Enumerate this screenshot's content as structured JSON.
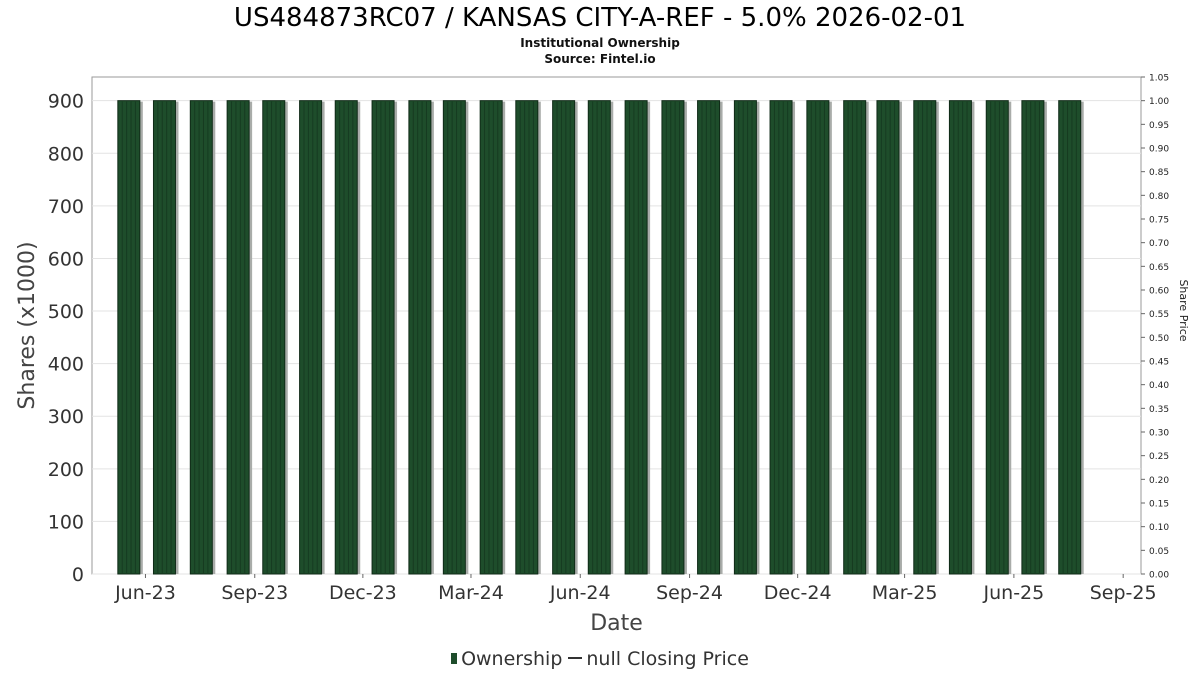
{
  "chart_data": {
    "type": "bar",
    "title": "US484873RC07 / KANSAS CITY-A-REF - 5.0% 2026-02-01",
    "subtitles": [
      "Institutional Ownership",
      "Source: Fintel.io"
    ],
    "xlabel": "Date",
    "ylabel": "Shares (x1000)",
    "y2label": "Share Price",
    "x_tick_labels": [
      "Jun-23",
      "Sep-23",
      "Dec-23",
      "Mar-24",
      "Jun-24",
      "Sep-24",
      "Dec-24",
      "Mar-25",
      "Jun-25",
      "Sep-25"
    ],
    "y_tick_labels": [
      "0",
      "100",
      "200",
      "300",
      "400",
      "500",
      "600",
      "700",
      "800",
      "900"
    ],
    "y2_tick_labels": [
      "0.00",
      "0.05",
      "0.10",
      "0.15",
      "0.20",
      "0.25",
      "0.30",
      "0.35",
      "0.40",
      "0.45",
      "0.50",
      "0.55",
      "0.60",
      "0.65",
      "0.70",
      "0.75",
      "0.80",
      "0.85",
      "0.90",
      "0.95",
      "1.00",
      "1.05"
    ],
    "ylim": [
      0,
      945
    ],
    "y2lim": [
      0,
      1.05
    ],
    "xlim": [
      "2023-05-01",
      "2025-09-30"
    ],
    "grid": true,
    "legend_position": "bottom",
    "series": [
      {
        "name": "Ownership",
        "color": "#1e4d2b",
        "x": [
          "2023-06-01",
          "2023-07-01",
          "2023-08-01",
          "2023-09-01",
          "2023-10-01",
          "2023-11-01",
          "2023-12-01",
          "2024-01-01",
          "2024-02-01",
          "2024-03-01",
          "2024-04-01",
          "2024-05-01",
          "2024-06-01",
          "2024-07-01",
          "2024-08-01",
          "2024-09-01",
          "2024-10-01",
          "2024-11-01",
          "2024-12-01",
          "2025-01-01",
          "2025-02-01",
          "2025-03-01",
          "2025-04-01",
          "2025-05-01",
          "2025-06-01",
          "2025-07-01",
          "2025-08-01"
        ],
        "values": [
          900,
          900,
          900,
          900,
          900,
          900,
          900,
          900,
          900,
          900,
          900,
          900,
          900,
          900,
          900,
          900,
          900,
          900,
          900,
          900,
          900,
          900,
          900,
          900,
          900,
          900,
          900
        ]
      },
      {
        "name": "null Closing Price",
        "color": "#333333",
        "values": []
      }
    ]
  }
}
